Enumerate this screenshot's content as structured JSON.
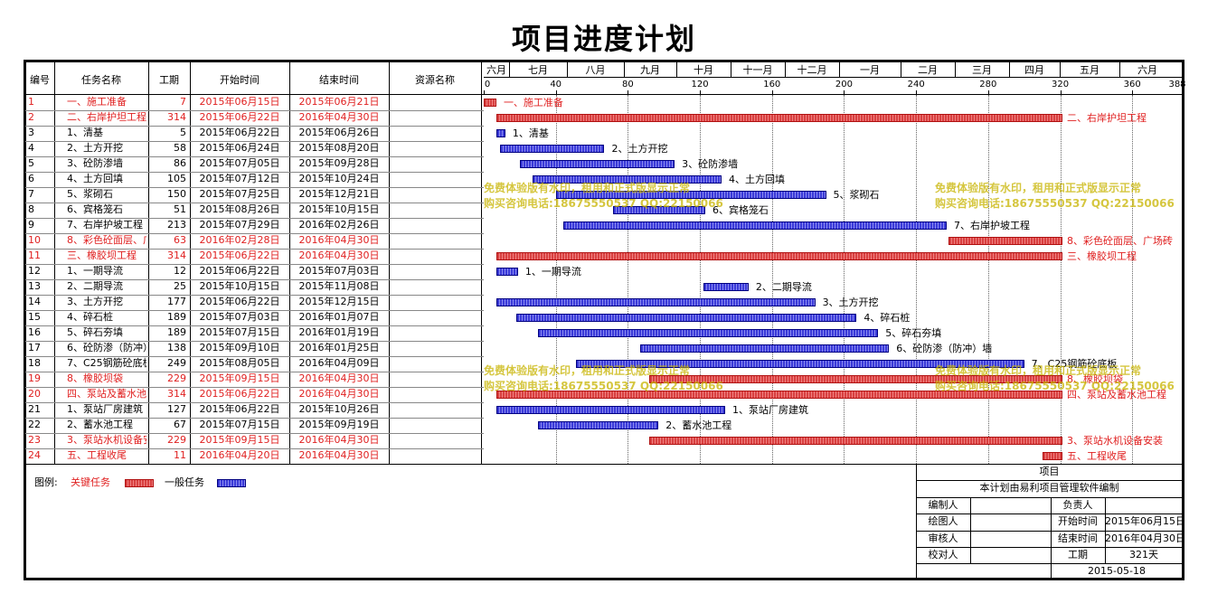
{
  "title": "项目进度计划",
  "columns": [
    "编号",
    "任务名称",
    "工期",
    "开始时间",
    "结束时间",
    "资源名称"
  ],
  "months": [
    "六月",
    "七月",
    "八月",
    "九月",
    "十月",
    "十一月",
    "十二月",
    "一月",
    "二月",
    "三月",
    "四月",
    "五月",
    "六月"
  ],
  "ticks": [
    "0",
    "40",
    "80",
    "120",
    "160",
    "200",
    "240",
    "280",
    "320",
    "360",
    "388"
  ],
  "tasks": [
    {
      "id": "1",
      "name": "一、施工准备",
      "duration": "7",
      "start": "2015年06月15日",
      "end": "2015年06月21日",
      "critical": true,
      "offset": 0,
      "label": "一、施工准备"
    },
    {
      "id": "2",
      "name": "二、右岸护坦工程",
      "duration": "314",
      "start": "2015年06月22日",
      "end": "2016年04月30日",
      "critical": true,
      "offset": 7,
      "label": "二、右岸护坦工程"
    },
    {
      "id": "3",
      "name": "1、清基",
      "duration": "5",
      "start": "2015年06月22日",
      "end": "2015年06月26日",
      "critical": false,
      "offset": 7,
      "label": "1、清基"
    },
    {
      "id": "4",
      "name": "2、土方开挖",
      "duration": "58",
      "start": "2015年06月24日",
      "end": "2015年08月20日",
      "critical": false,
      "offset": 9,
      "label": "2、土方开挖"
    },
    {
      "id": "5",
      "name": "3、砼防渗墙",
      "duration": "86",
      "start": "2015年07月05日",
      "end": "2015年09月28日",
      "critical": false,
      "offset": 20,
      "label": "3、砼防渗墙"
    },
    {
      "id": "6",
      "name": "4、土方回填",
      "duration": "105",
      "start": "2015年07月12日",
      "end": "2015年10月24日",
      "critical": false,
      "offset": 27,
      "label": "4、土方回填"
    },
    {
      "id": "7",
      "name": "5、浆砌石",
      "duration": "150",
      "start": "2015年07月25日",
      "end": "2015年12月21日",
      "critical": false,
      "offset": 40,
      "label": "5、浆砌石"
    },
    {
      "id": "8",
      "name": "6、宾格笼石",
      "duration": "51",
      "start": "2015年08月26日",
      "end": "2015年10月15日",
      "critical": false,
      "offset": 72,
      "label": "6、宾格笼石"
    },
    {
      "id": "9",
      "name": "7、右岸护坡工程",
      "duration": "213",
      "start": "2015年07月29日",
      "end": "2016年02月26日",
      "critical": false,
      "offset": 44,
      "label": "7、右岸护坡工程"
    },
    {
      "id": "10",
      "name": "8、彩色砼面层、广场砖",
      "duration": "63",
      "start": "2016年02月28日",
      "end": "2016年04月30日",
      "critical": true,
      "offset": 258,
      "label": "8、彩色砼面层、广场砖"
    },
    {
      "id": "11",
      "name": "三、橡胶坝工程",
      "duration": "314",
      "start": "2015年06月22日",
      "end": "2016年04月30日",
      "critical": true,
      "offset": 7,
      "label": "三、橡胶坝工程"
    },
    {
      "id": "12",
      "name": "1、一期导流",
      "duration": "12",
      "start": "2015年06月22日",
      "end": "2015年07月03日",
      "critical": false,
      "offset": 7,
      "label": "1、一期导流"
    },
    {
      "id": "13",
      "name": "2、二期导流",
      "duration": "25",
      "start": "2015年10月15日",
      "end": "2015年11月08日",
      "critical": false,
      "offset": 122,
      "label": "2、二期导流"
    },
    {
      "id": "14",
      "name": "3、土方开挖",
      "duration": "177",
      "start": "2015年06月22日",
      "end": "2015年12月15日",
      "critical": false,
      "offset": 7,
      "label": "3、土方开挖"
    },
    {
      "id": "15",
      "name": "4、碎石桩",
      "duration": "189",
      "start": "2015年07月03日",
      "end": "2016年01月07日",
      "critical": false,
      "offset": 18,
      "label": "4、碎石桩"
    },
    {
      "id": "16",
      "name": "5、碎石夯填",
      "duration": "189",
      "start": "2015年07月15日",
      "end": "2016年01月19日",
      "critical": false,
      "offset": 30,
      "label": "5、碎石夯填"
    },
    {
      "id": "17",
      "name": "6、砼防渗（防冲）墙",
      "duration": "138",
      "start": "2015年09月10日",
      "end": "2016年01月25日",
      "critical": false,
      "offset": 87,
      "label": "6、砼防渗（防冲）墙"
    },
    {
      "id": "18",
      "name": "7、C25钢筋砼底板",
      "duration": "249",
      "start": "2015年08月05日",
      "end": "2016年04月09日",
      "critical": false,
      "offset": 51,
      "label": "7、C25钢筋砼底板"
    },
    {
      "id": "19",
      "name": "8、橡胶坝袋",
      "duration": "229",
      "start": "2015年09月15日",
      "end": "2016年04月30日",
      "critical": true,
      "offset": 92,
      "label": "8、橡胶坝袋"
    },
    {
      "id": "20",
      "name": "四、泵站及蓄水池工程",
      "duration": "314",
      "start": "2015年06月22日",
      "end": "2016年04月30日",
      "critical": true,
      "offset": 7,
      "label": "四、泵站及蓄水池工程"
    },
    {
      "id": "21",
      "name": "1、泵站厂房建筑",
      "duration": "127",
      "start": "2015年06月22日",
      "end": "2015年10月26日",
      "critical": false,
      "offset": 7,
      "label": "1、泵站厂房建筑"
    },
    {
      "id": "22",
      "name": "2、蓄水池工程",
      "duration": "67",
      "start": "2015年07月15日",
      "end": "2015年09月19日",
      "critical": false,
      "offset": 30,
      "label": "2、蓄水池工程"
    },
    {
      "id": "23",
      "name": "3、泵站水机设备安装",
      "duration": "229",
      "start": "2015年09月15日",
      "end": "2016年04月30日",
      "critical": true,
      "offset": 92,
      "label": "3、泵站水机设备安装"
    },
    {
      "id": "24",
      "name": "五、工程收尾",
      "duration": "11",
      "start": "2016年04月20日",
      "end": "2016年04月30日",
      "critical": true,
      "offset": 310,
      "label": "五、工程收尾"
    }
  ],
  "legend": {
    "label": "图例:",
    "critical": "关键任务",
    "normal": "一般任务"
  },
  "watermark": {
    "line1": "免费体验版有水印，租用和正式版显示正常",
    "line2": "购买咨询电话:18675550537 QQ:22150066"
  },
  "info": {
    "project": "项目",
    "compiled": "本计划由易利项目管理软件编制",
    "editor": "编制人",
    "responsible": "负责人",
    "drawer": "绘图人",
    "start_label": "开始时间",
    "start_value": "2015年06月15日",
    "reviewer": "审核人",
    "end_label": "结束时间",
    "end_value": "2016年04月30日",
    "checker": "校对人",
    "duration_label": "工期",
    "duration_value": "321天",
    "date": "2015-05-18"
  },
  "colors": {
    "critical": "#e02020",
    "critical_bar": "#d84040",
    "normal_bar": "#3a3ad8",
    "watermark": "#c8b400"
  }
}
